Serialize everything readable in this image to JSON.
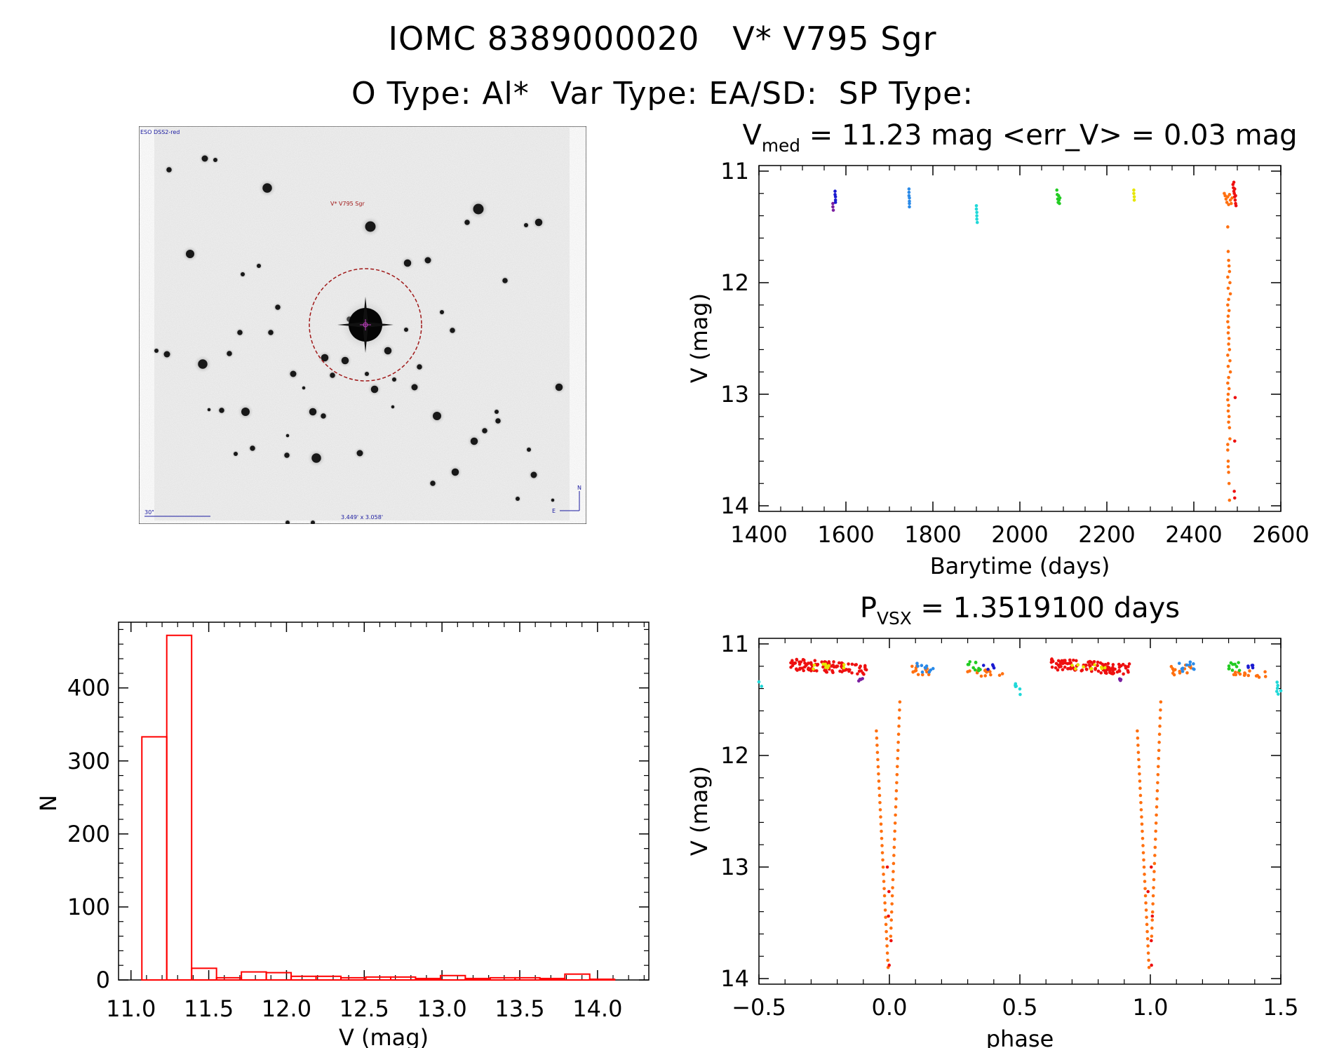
{
  "header": {
    "title_line1": "IOMC 8389000020   V* V795 Sgr",
    "title_line2": "O Type: Al*  Var Type: EA/SD:  SP Type:"
  },
  "image_panel": {
    "survey_label": "ESO DSS2-red",
    "target_label": "V* V795 Sgr",
    "scale_label": "30\"",
    "fov_label": "3.449' x 3.058'",
    "compass_n": "N",
    "compass_e": "E"
  },
  "chart_data": [
    {
      "id": "lightcurve",
      "type": "scatter",
      "title_main": "V",
      "title_sub": "med",
      "title_rest": " = 11.23 mag <err_V> = 0.03 mag",
      "xlabel": "Barytime (days)",
      "ylabel": "V (mag)",
      "xlim": [
        1400,
        2600
      ],
      "ylim": [
        14.05,
        10.95
      ],
      "xticks": [
        1400,
        1600,
        1800,
        2000,
        2200,
        2400,
        2600
      ],
      "yticks": [
        11,
        12,
        13,
        14
      ],
      "colors": {
        "purple": "#7a1fa0",
        "blue": "#1a1ad0",
        "skyblue": "#2a8ae8",
        "cyan": "#20d8d8",
        "green": "#22cc22",
        "yellow": "#e6e600",
        "orange": "#ff7010",
        "red": "#ee1010"
      },
      "series": [
        {
          "name": "s1",
          "color": "purple",
          "x": [
            1570,
            1570,
            1571
          ],
          "y": [
            11.29,
            11.32,
            11.35
          ]
        },
        {
          "name": "s2",
          "color": "blue",
          "x": [
            1575,
            1575,
            1576,
            1576,
            1576
          ],
          "y": [
            11.18,
            11.21,
            11.23,
            11.26,
            11.28
          ]
        },
        {
          "name": "s3",
          "color": "skyblue",
          "x": [
            1745,
            1745,
            1745,
            1746,
            1746,
            1746,
            1746
          ],
          "y": [
            11.16,
            11.19,
            11.22,
            11.24,
            11.27,
            11.29,
            11.32
          ]
        },
        {
          "name": "s4",
          "color": "cyan",
          "x": [
            1900,
            1900,
            1901,
            1901,
            1901,
            1902
          ],
          "y": [
            11.31,
            11.34,
            11.37,
            11.4,
            11.43,
            11.46
          ]
        },
        {
          "name": "s5",
          "color": "green",
          "x": [
            2085,
            2086,
            2087,
            2088,
            2089,
            2090,
            2091,
            2092
          ],
          "y": [
            11.17,
            11.21,
            11.25,
            11.28,
            11.22,
            11.26,
            11.29,
            11.24
          ]
        },
        {
          "name": "s6",
          "color": "yellow",
          "x": [
            2262,
            2262,
            2263,
            2263
          ],
          "y": [
            11.17,
            11.2,
            11.23,
            11.26
          ]
        },
        {
          "name": "s7",
          "color": "orange",
          "x": [
            2470,
            2472,
            2474,
            2476,
            2478,
            2480,
            2482,
            2484,
            2486,
            2488,
            2478,
            2479,
            2480,
            2481,
            2482,
            2483,
            2484,
            2478,
            2479,
            2480,
            2481,
            2482,
            2483,
            2484,
            2478,
            2479,
            2480,
            2481,
            2482,
            2483,
            2478,
            2479,
            2480,
            2481,
            2482,
            2478,
            2479,
            2480,
            2481,
            2478,
            2479,
            2480,
            2478,
            2479,
            2480,
            2481,
            2478,
            2479,
            2480,
            2478,
            2479
          ],
          "y": [
            11.2,
            11.22,
            11.25,
            11.28,
            11.23,
            11.3,
            11.21,
            11.26,
            11.29,
            11.24,
            11.5,
            11.72,
            11.8,
            11.85,
            11.9,
            12.0,
            12.1,
            12.2,
            12.3,
            12.4,
            12.5,
            12.6,
            12.7,
            12.8,
            12.9,
            13.0,
            13.1,
            13.2,
            13.3,
            13.4,
            13.5,
            13.6,
            13.7,
            13.8,
            13.95,
            11.95,
            12.05,
            12.15,
            12.25,
            12.35,
            12.45,
            12.55,
            12.65,
            12.75,
            12.85,
            12.95,
            13.05,
            13.15,
            13.25,
            13.45,
            13.65
          ]
        },
        {
          "name": "s8",
          "color": "red",
          "x": [
            2490,
            2491,
            2492,
            2493,
            2494,
            2495,
            2496,
            2497,
            2492,
            2494,
            2496,
            2495,
            2494,
            2493,
            2494
          ],
          "y": [
            11.12,
            11.15,
            11.18,
            11.2,
            11.23,
            11.26,
            11.29,
            11.31,
            11.1,
            11.16,
            11.22,
            13.03,
            13.42,
            13.87,
            13.93
          ]
        }
      ]
    },
    {
      "id": "phased",
      "type": "scatter",
      "title_main": "P",
      "title_sub": "VSX",
      "title_rest": " = 1.3519100 days",
      "xlabel": "phase",
      "ylabel": "V (mag)",
      "xlim": [
        -0.5,
        1.5
      ],
      "ylim": [
        14.05,
        10.95
      ],
      "xticks": [
        -0.5,
        0.0,
        0.5,
        1.0,
        1.5
      ],
      "xtick_labels": [
        "−0.5",
        "0.0",
        "0.5",
        "1.0",
        "1.5"
      ],
      "yticks": [
        11,
        12,
        13,
        14
      ],
      "period": "1.3519100"
    },
    {
      "id": "histogram",
      "type": "bar",
      "xlabel": "V (mag)",
      "ylabel": "N",
      "xlim": [
        10.92,
        14.33
      ],
      "ylim": [
        0,
        490
      ],
      "xticks": [
        11.0,
        11.5,
        12.0,
        12.5,
        13.0,
        13.5,
        14.0
      ],
      "xtick_labels": [
        "11.0",
        "11.5",
        "12.0",
        "12.5",
        "13.0",
        "13.5",
        "14.0"
      ],
      "yticks": [
        0,
        100,
        200,
        300,
        400
      ],
      "bin_edges": [
        11.07,
        11.23,
        11.39,
        11.55,
        11.71,
        11.87,
        12.03,
        12.19,
        12.35,
        12.51,
        12.67,
        12.83,
        12.99,
        13.15,
        13.31,
        13.47,
        13.63,
        13.79,
        13.95,
        14.11
      ],
      "counts": [
        333,
        472,
        16,
        3,
        11,
        10,
        5,
        5,
        3,
        4,
        4,
        2,
        6,
        2,
        3,
        3,
        2,
        8,
        1
      ]
    }
  ]
}
